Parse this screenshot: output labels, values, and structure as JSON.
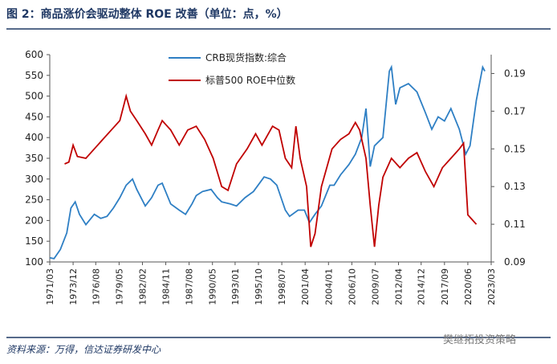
{
  "title": "图 2：商品涨价会驱动整体 ROE 改善（单位：点，%）",
  "source": "资料来源：万得，信达证券研发中心",
  "watermark": "樊继拓投资策略",
  "chart_data": {
    "type": "line",
    "xlim": [
      "1971/03",
      "2023/03"
    ],
    "xticks": [
      "1971/03",
      "1973/12",
      "1976/08",
      "1979/05",
      "1982/02",
      "1984/11",
      "1987/08",
      "1990/05",
      "1993/01",
      "1995/10",
      "1998/07",
      "2001/04",
      "2004/01",
      "2006/10",
      "2009/07",
      "2012/04",
      "2014/12",
      "2017/09",
      "2020/06",
      "2023/03"
    ],
    "ylim": [
      100,
      600
    ],
    "yticks": [
      100,
      150,
      200,
      250,
      300,
      350,
      400,
      450,
      500,
      550,
      600
    ],
    "y2lim": [
      0.09,
      0.2
    ],
    "y2ticks": [
      0.09,
      0.11,
      0.13,
      0.15,
      0.17,
      0.19
    ],
    "series": [
      {
        "name": "CRB现货指数:综合",
        "color": "#2e7fc4",
        "x": [
          "1971/03",
          "1971/09",
          "1972/06",
          "1973/03",
          "1973/09",
          "1974/03",
          "1974/09",
          "1975/06",
          "1976/06",
          "1977/03",
          "1977/12",
          "1978/09",
          "1979/06",
          "1980/03",
          "1980/12",
          "1981/06",
          "1982/06",
          "1983/03",
          "1983/12",
          "1984/06",
          "1985/06",
          "1986/06",
          "1987/03",
          "1987/12",
          "1988/06",
          "1989/03",
          "1990/03",
          "1990/12",
          "1991/06",
          "1992/06",
          "1993/03",
          "1994/03",
          "1995/03",
          "1996/06",
          "1997/03",
          "1997/12",
          "1998/06",
          "1998/12",
          "1999/06",
          "2000/06",
          "2001/03",
          "2001/10",
          "2002/06",
          "2003/03",
          "2004/03",
          "2004/09",
          "2005/06",
          "2006/06",
          "2007/03",
          "2007/12",
          "2008/06",
          "2008/12",
          "2009/06",
          "2010/06",
          "2011/03",
          "2011/06",
          "2011/12",
          "2012/06",
          "2013/06",
          "2014/06",
          "2015/06",
          "2016/03",
          "2016/12",
          "2017/09",
          "2018/06",
          "2019/06",
          "2020/03",
          "2020/09",
          "2021/06",
          "2022/03",
          "2022/06"
        ],
        "values": [
          110,
          108,
          130,
          170,
          230,
          245,
          215,
          190,
          215,
          205,
          210,
          230,
          255,
          285,
          300,
          275,
          235,
          255,
          285,
          290,
          240,
          225,
          215,
          240,
          260,
          270,
          275,
          255,
          245,
          240,
          235,
          255,
          270,
          305,
          300,
          285,
          255,
          225,
          210,
          225,
          225,
          195,
          215,
          235,
          285,
          285,
          310,
          335,
          360,
          400,
          470,
          330,
          380,
          400,
          560,
          570,
          480,
          520,
          530,
          510,
          460,
          420,
          450,
          440,
          470,
          420,
          360,
          380,
          490,
          570,
          560
        ]
      },
      {
        "name": "标普500 ROE中位数",
        "color": "#c00000",
        "axis": "y2",
        "x": [
          "1972/12",
          "1973/06",
          "1973/12",
          "1974/06",
          "1975/06",
          "1976/06",
          "1977/06",
          "1978/06",
          "1979/06",
          "1980/03",
          "1980/09",
          "1981/06",
          "1982/06",
          "1983/03",
          "1983/12",
          "1984/06",
          "1985/06",
          "1986/06",
          "1987/06",
          "1988/06",
          "1989/06",
          "1990/06",
          "1991/06",
          "1992/03",
          "1993/03",
          "1994/06",
          "1995/06",
          "1996/03",
          "1997/06",
          "1998/03",
          "1998/12",
          "1999/09",
          "2000/03",
          "2000/09",
          "2001/06",
          "2001/12",
          "2002/06",
          "2003/03",
          "2004/06",
          "2005/06",
          "2006/06",
          "2007/03",
          "2007/09",
          "2008/06",
          "2008/12",
          "2009/06",
          "2009/12",
          "2010/06",
          "2011/06",
          "2012/06",
          "2013/06",
          "2014/06",
          "2015/06",
          "2016/06",
          "2017/06",
          "2018/06",
          "2019/06",
          "2019/12",
          "2020/06",
          "2021/06"
        ],
        "values": [
          0.142,
          0.143,
          0.152,
          0.146,
          0.145,
          0.15,
          0.155,
          0.16,
          0.165,
          0.178,
          0.17,
          0.165,
          0.158,
          0.152,
          0.16,
          0.165,
          0.16,
          0.152,
          0.16,
          0.162,
          0.155,
          0.145,
          0.13,
          0.128,
          0.142,
          0.15,
          0.158,
          0.152,
          0.162,
          0.16,
          0.145,
          0.14,
          0.162,
          0.145,
          0.13,
          0.098,
          0.105,
          0.13,
          0.15,
          0.155,
          0.158,
          0.164,
          0.16,
          0.145,
          0.12,
          0.098,
          0.12,
          0.135,
          0.145,
          0.14,
          0.145,
          0.148,
          0.138,
          0.13,
          0.14,
          0.145,
          0.15,
          0.153,
          0.115,
          0.11
        ]
      }
    ]
  }
}
